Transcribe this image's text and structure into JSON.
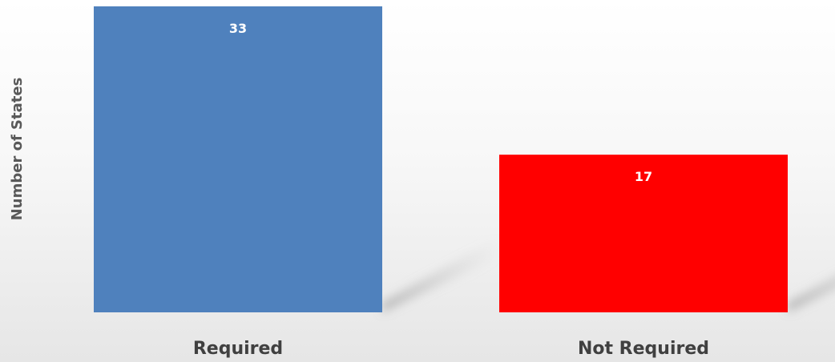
{
  "chart_data": {
    "type": "bar",
    "categories": [
      "Required",
      "Not Required"
    ],
    "values": [
      33,
      17
    ],
    "title": "",
    "xlabel": "",
    "ylabel": "Number of States",
    "ylim": [
      0,
      35
    ],
    "grid": false,
    "legend": "none",
    "bar_colors": [
      "#4f81bd",
      "#ff0000"
    ],
    "data_labels": [
      "33",
      "17"
    ]
  }
}
